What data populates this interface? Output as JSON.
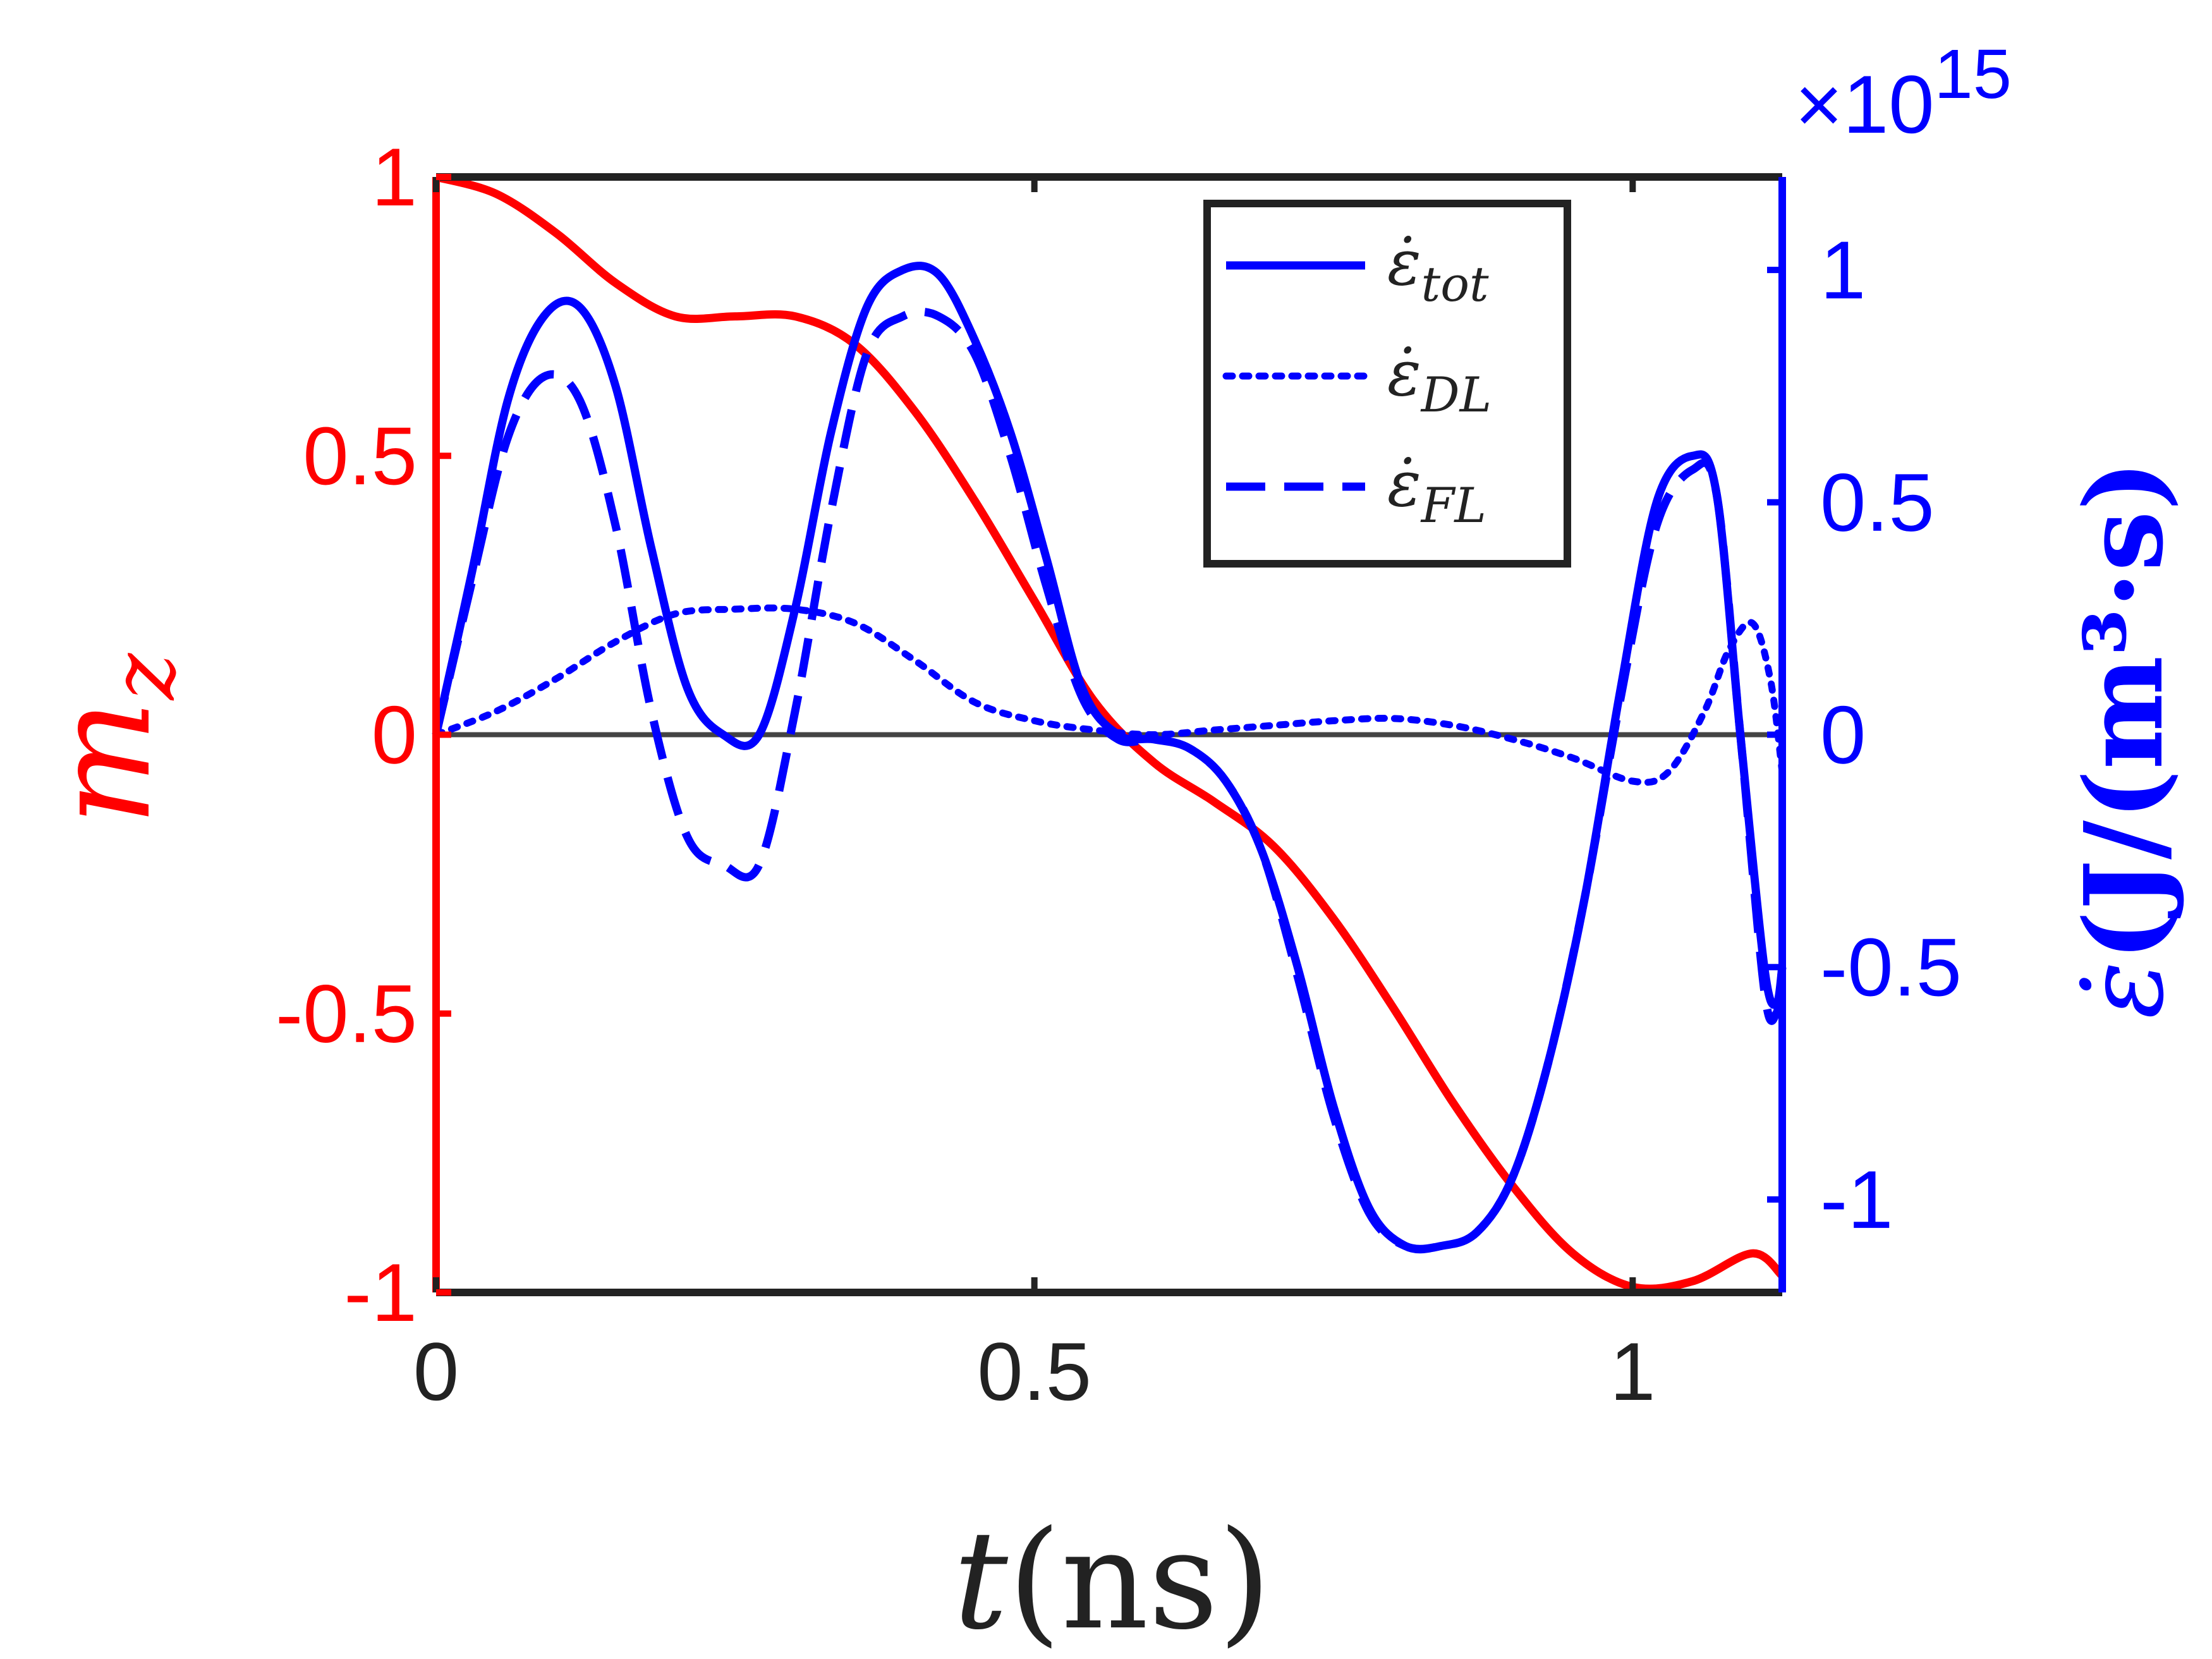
{
  "chart_data": {
    "type": "line",
    "x_axis": {
      "variable": "t",
      "unit": "(ns)",
      "range": [
        0,
        1.125
      ],
      "ticks": [
        0,
        0.5,
        1
      ],
      "tick_labels": [
        "0",
        "0.5",
        "1"
      ]
    },
    "y_left": {
      "variable": "m",
      "subscript": "z",
      "range": [
        -1,
        1
      ],
      "ticks": [
        -1,
        -0.5,
        0,
        0.5,
        1
      ],
      "tick_labels": [
        "-1",
        "-0.5",
        "0",
        "0.5",
        "1"
      ],
      "color": "#ff0000"
    },
    "y_right": {
      "symbol": "ε̇",
      "unit": "(J/(m³·s)",
      "exponent_label": "×10",
      "exponent": "15",
      "range": [
        -1.2,
        1.2
      ],
      "ticks": [
        -1,
        -0.5,
        0,
        0.5,
        1
      ],
      "tick_labels": [
        "-1",
        "-0.5",
        "0",
        "0.5",
        "1"
      ],
      "color": "#0000ff"
    },
    "grid": false,
    "legend_position": "top-right",
    "series": [
      {
        "name": "m_z",
        "axis": "left",
        "color": "#ff0000",
        "style": "solid",
        "x": [
          0,
          0.05,
          0.1,
          0.15,
          0.2,
          0.25,
          0.3,
          0.35,
          0.4,
          0.45,
          0.5,
          0.55,
          0.6,
          0.65,
          0.7,
          0.75,
          0.8,
          0.85,
          0.9,
          0.95,
          1.0,
          1.05,
          1.1,
          1.125
        ],
        "y": [
          1.0,
          0.97,
          0.9,
          0.81,
          0.75,
          0.75,
          0.75,
          0.7,
          0.58,
          0.42,
          0.24,
          0.06,
          -0.05,
          -0.12,
          -0.2,
          -0.33,
          -0.49,
          -0.66,
          -0.81,
          -0.93,
          -0.99,
          -0.98,
          -0.93,
          -0.97
        ]
      },
      {
        "name": "tot",
        "axis": "right",
        "color": "#0000ff",
        "style": "solid",
        "x": [
          0,
          0.03,
          0.06,
          0.09,
          0.12,
          0.15,
          0.18,
          0.21,
          0.24,
          0.27,
          0.3,
          0.33,
          0.36,
          0.39,
          0.42,
          0.45,
          0.48,
          0.51,
          0.54,
          0.57,
          0.6,
          0.63,
          0.66,
          0.69,
          0.72,
          0.75,
          0.78,
          0.81,
          0.84,
          0.87,
          0.9,
          0.93,
          0.96,
          0.99,
          1.02,
          1.05,
          1.07,
          1.09,
          1.11,
          1.12,
          1.125
        ],
        "y": [
          0.0,
          0.35,
          0.72,
          0.9,
          0.92,
          0.75,
          0.4,
          0.1,
          0.0,
          0.0,
          0.27,
          0.65,
          0.92,
          1.0,
          0.99,
          0.85,
          0.65,
          0.38,
          0.1,
          0.0,
          -0.01,
          -0.03,
          -0.1,
          -0.25,
          -0.5,
          -0.8,
          -1.02,
          -1.1,
          -1.1,
          -1.07,
          -0.95,
          -0.7,
          -0.35,
          0.1,
          0.5,
          0.6,
          0.52,
          0.0,
          -0.5,
          -0.58,
          -0.5
        ]
      },
      {
        "name": "DL",
        "axis": "right",
        "color": "#0000ff",
        "style": "dotted",
        "x": [
          0,
          0.05,
          0.1,
          0.15,
          0.2,
          0.25,
          0.3,
          0.35,
          0.4,
          0.45,
          0.5,
          0.55,
          0.6,
          0.65,
          0.7,
          0.75,
          0.8,
          0.85,
          0.9,
          0.95,
          1.0,
          1.03,
          1.06,
          1.08,
          1.1,
          1.115,
          1.125
        ],
        "y": [
          0.0,
          0.05,
          0.12,
          0.2,
          0.26,
          0.27,
          0.27,
          0.24,
          0.16,
          0.07,
          0.03,
          0.01,
          0.0,
          0.01,
          0.02,
          0.03,
          0.035,
          0.02,
          -0.01,
          -0.05,
          -0.1,
          -0.08,
          0.05,
          0.18,
          0.24,
          0.12,
          -0.08
        ]
      },
      {
        "name": "FL",
        "axis": "right",
        "color": "#0000ff",
        "style": "dashed",
        "x": [
          0,
          0.03,
          0.06,
          0.09,
          0.12,
          0.15,
          0.18,
          0.21,
          0.24,
          0.27,
          0.3,
          0.33,
          0.36,
          0.39,
          0.42,
          0.45,
          0.48,
          0.51,
          0.54,
          0.57,
          0.6,
          0.63,
          0.66,
          0.69,
          0.72,
          0.75,
          0.78,
          0.81,
          0.84,
          0.87,
          0.9,
          0.93,
          0.96,
          0.99,
          1.02,
          1.05,
          1.07,
          1.09,
          1.11,
          1.12,
          1.125
        ],
        "y": [
          0.0,
          0.33,
          0.64,
          0.77,
          0.72,
          0.45,
          0.05,
          -0.22,
          -0.28,
          -0.28,
          0.05,
          0.48,
          0.82,
          0.9,
          0.9,
          0.82,
          0.6,
          0.32,
          0.08,
          -0.01,
          -0.01,
          -0.03,
          -0.1,
          -0.25,
          -0.52,
          -0.82,
          -1.03,
          -1.1,
          -1.1,
          -1.07,
          -0.95,
          -0.7,
          -0.35,
          0.08,
          0.45,
          0.57,
          0.52,
          0.0,
          -0.55,
          -0.6,
          -0.5
        ]
      }
    ]
  }
}
